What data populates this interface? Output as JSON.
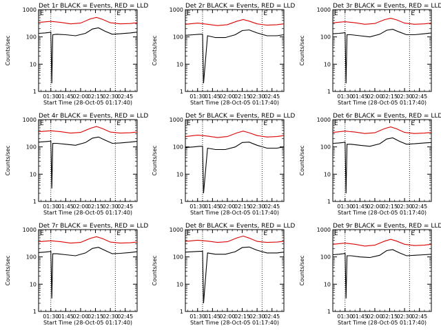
{
  "colors": {
    "events": "#000000",
    "lld": "#dd0000",
    "axis": "#000000"
  },
  "chart_data": [
    {
      "type": "line",
      "title": "Det 1r BLACK = Events, RED = LLD",
      "xlabel": "Start Time (28-Oct-05 01:17:40)",
      "ylabel": "Counts/sec",
      "yscale": "log",
      "ylim": [
        1,
        1000
      ],
      "yticks": [
        "1",
        "10",
        "100",
        "1000"
      ],
      "xlim": [
        "01:17:40",
        "02:57:00"
      ],
      "xticks": [
        "01:30",
        "01:45",
        "02:00",
        "02:15",
        "02:30",
        "02:45"
      ],
      "markers": [
        {
          "label": "E",
          "time": "01:17:40"
        },
        {
          "label": "E",
          "time": "02:35"
        }
      ],
      "vlines": [
        "01:30",
        "02:35"
      ],
      "series": [
        {
          "name": "Events",
          "color": "#000000",
          "x": [
            "01:18",
            "01:24",
            "01:28",
            "01:30",
            "01:31",
            "01:32",
            "01:36",
            "01:45",
            "01:55",
            "02:05",
            "02:12",
            "02:18",
            "02:25",
            "02:32",
            "02:40",
            "02:50",
            "02:57"
          ],
          "values": [
            135,
            140,
            145,
            150,
            2,
            120,
            125,
            120,
            110,
            135,
            195,
            215,
            160,
            125,
            130,
            140,
            150
          ]
        },
        {
          "name": "LLD",
          "color": "#dd0000",
          "x": [
            "01:18",
            "01:30",
            "01:40",
            "01:50",
            "02:00",
            "02:10",
            "02:16",
            "02:22",
            "02:30",
            "02:40",
            "02:50",
            "02:57"
          ],
          "values": [
            340,
            370,
            340,
            300,
            320,
            460,
            520,
            440,
            330,
            300,
            310,
            330
          ]
        }
      ]
    },
    {
      "type": "line",
      "title": "Det 2r BLACK = Events, RED = LLD",
      "xlabel": "Start Time (28-Oct-05 01:17:40)",
      "ylabel": "Counts/sec",
      "yscale": "log",
      "ylim": [
        1,
        1000
      ],
      "yticks": [
        "1",
        "10",
        "100",
        "1000"
      ],
      "xlim": [
        "01:17:40",
        "02:57:00"
      ],
      "xticks": [
        "01:30",
        "01:45",
        "02:00",
        "02:15",
        "02:30",
        "02:45"
      ],
      "markers": [
        {
          "label": "E",
          "time": "01:17:40"
        },
        {
          "label": "E",
          "time": "02:35"
        }
      ],
      "vlines": [
        "01:35",
        "02:35"
      ],
      "series": [
        {
          "name": "Events",
          "color": "#000000",
          "x": [
            "01:18",
            "01:26",
            "01:32",
            "01:35",
            "01:36",
            "01:40",
            "01:48",
            "01:58",
            "02:08",
            "02:15",
            "02:22",
            "02:30",
            "02:40",
            "02:50",
            "02:57"
          ],
          "values": [
            115,
            120,
            125,
            125,
            2,
            110,
            95,
            95,
            120,
            170,
            180,
            140,
            110,
            110,
            120
          ]
        },
        {
          "name": "LLD",
          "color": "#dd0000",
          "x": [
            "01:18",
            "01:30",
            "01:40",
            "01:50",
            "02:00",
            "02:10",
            "02:16",
            "02:22",
            "02:30",
            "02:40",
            "02:50",
            "02:57"
          ],
          "values": [
            290,
            320,
            290,
            260,
            280,
            380,
            430,
            380,
            300,
            270,
            280,
            300
          ]
        }
      ]
    },
    {
      "type": "line",
      "title": "Det 3r BLACK = Events, RED = LLD",
      "xlabel": "Start Time (28-Oct-05 01:17:40)",
      "ylabel": "Counts/sec",
      "yscale": "log",
      "ylim": [
        1,
        1000
      ],
      "yticks": [
        "1",
        "10",
        "100",
        "1000"
      ],
      "xlim": [
        "01:17:40",
        "02:57:00"
      ],
      "xticks": [
        "01:30",
        "01:45",
        "02:00",
        "02:15",
        "02:30",
        "02:45"
      ],
      "markers": [
        {
          "label": "E",
          "time": "01:17:40"
        },
        {
          "label": "E",
          "time": "02:35"
        }
      ],
      "vlines": [
        "01:30",
        "02:35"
      ],
      "series": [
        {
          "name": "Events",
          "color": "#000000",
          "x": [
            "01:18",
            "01:24",
            "01:28",
            "01:30",
            "01:31",
            "01:32",
            "01:36",
            "01:45",
            "01:55",
            "02:05",
            "02:12",
            "02:18",
            "02:25",
            "02:32",
            "02:40",
            "02:50",
            "02:57"
          ],
          "values": [
            130,
            135,
            140,
            145,
            2,
            120,
            120,
            110,
            100,
            125,
            175,
            190,
            150,
            120,
            120,
            130,
            140
          ]
        },
        {
          "name": "LLD",
          "color": "#dd0000",
          "x": [
            "01:18",
            "01:30",
            "01:40",
            "01:50",
            "02:00",
            "02:10",
            "02:16",
            "02:22",
            "02:30",
            "02:40",
            "02:50",
            "02:57"
          ],
          "values": [
            330,
            360,
            330,
            290,
            310,
            430,
            480,
            420,
            320,
            290,
            300,
            320
          ]
        }
      ]
    },
    {
      "type": "line",
      "title": "Det 4r BLACK = Events, RED = LLD",
      "xlabel": "Start Time (28-Oct-05 01:17:40)",
      "ylabel": "Counts/sec",
      "yscale": "log",
      "ylim": [
        1,
        1000
      ],
      "yticks": [
        "1",
        "10",
        "100",
        "1000"
      ],
      "xlim": [
        "01:17:40",
        "02:57:00"
      ],
      "xticks": [
        "01:30",
        "01:45",
        "02:00",
        "02:15",
        "02:30",
        "02:45"
      ],
      "markers": [
        {
          "label": "E",
          "time": "01:17:40"
        },
        {
          "label": "E",
          "time": "02:35"
        }
      ],
      "vlines": [
        "01:30",
        "02:35"
      ],
      "series": [
        {
          "name": "Events",
          "color": "#000000",
          "x": [
            "01:18",
            "01:24",
            "01:28",
            "01:30",
            "01:31",
            "01:32",
            "01:36",
            "01:45",
            "01:55",
            "02:05",
            "02:12",
            "02:18",
            "02:25",
            "02:32",
            "02:40",
            "02:50",
            "02:57"
          ],
          "values": [
            150,
            155,
            160,
            165,
            3,
            135,
            135,
            125,
            115,
            145,
            210,
            230,
            175,
            135,
            140,
            150,
            160
          ]
        },
        {
          "name": "LLD",
          "color": "#dd0000",
          "x": [
            "01:18",
            "01:30",
            "01:40",
            "01:50",
            "02:00",
            "02:10",
            "02:16",
            "02:22",
            "02:30",
            "02:40",
            "02:50",
            "02:57"
          ],
          "values": [
            360,
            390,
            360,
            320,
            340,
            480,
            560,
            470,
            350,
            320,
            330,
            350
          ]
        }
      ]
    },
    {
      "type": "line",
      "title": "Det 5r BLACK = Events, RED = LLD",
      "xlabel": "Start Time (28-Oct-05 01:17:40)",
      "ylabel": "Counts/sec",
      "yscale": "log",
      "ylim": [
        1,
        1000
      ],
      "yticks": [
        "1",
        "10",
        "100",
        "1000"
      ],
      "xlim": [
        "01:17:40",
        "02:57:00"
      ],
      "xticks": [
        "01:30",
        "01:45",
        "02:00",
        "02:15",
        "02:30",
        "02:45"
      ],
      "markers": [
        {
          "label": "E",
          "time": "01:17:40"
        },
        {
          "label": "E",
          "time": "02:35"
        }
      ],
      "vlines": [
        "01:35",
        "02:35"
      ],
      "series": [
        {
          "name": "Events",
          "color": "#000000",
          "x": [
            "01:18",
            "01:26",
            "01:32",
            "01:35",
            "01:36",
            "01:40",
            "01:48",
            "01:58",
            "02:08",
            "02:15",
            "02:22",
            "02:30",
            "02:40",
            "02:50",
            "02:57"
          ],
          "values": [
            95,
            100,
            105,
            105,
            2,
            90,
            80,
            80,
            100,
            145,
            150,
            115,
            90,
            90,
            100
          ]
        },
        {
          "name": "LLD",
          "color": "#dd0000",
          "x": [
            "01:18",
            "01:30",
            "01:40",
            "01:50",
            "02:00",
            "02:10",
            "02:16",
            "02:22",
            "02:30",
            "02:40",
            "02:50",
            "02:57"
          ],
          "values": [
            240,
            270,
            250,
            220,
            240,
            330,
            380,
            330,
            260,
            230,
            240,
            260
          ]
        }
      ]
    },
    {
      "type": "line",
      "title": "Det 6r BLACK = Events, RED = LLD",
      "xlabel": "Start Time (28-Oct-05 01:17:40)",
      "ylabel": "Counts/sec",
      "yscale": "log",
      "ylim": [
        1,
        1000
      ],
      "yticks": [
        "1",
        "10",
        "100",
        "1000"
      ],
      "xlim": [
        "01:17:40",
        "02:57:00"
      ],
      "xticks": [
        "01:30",
        "01:45",
        "02:00",
        "02:15",
        "02:30",
        "02:45"
      ],
      "markers": [
        {
          "label": "E",
          "time": "01:17:40"
        },
        {
          "label": "E",
          "time": "02:35"
        }
      ],
      "vlines": [
        "01:30",
        "02:35"
      ],
      "series": [
        {
          "name": "Events",
          "color": "#000000",
          "x": [
            "01:18",
            "01:24",
            "01:28",
            "01:30",
            "01:31",
            "01:32",
            "01:36",
            "01:45",
            "01:55",
            "02:05",
            "02:12",
            "02:18",
            "02:25",
            "02:32",
            "02:40",
            "02:50",
            "02:57"
          ],
          "values": [
            135,
            140,
            145,
            150,
            2,
            125,
            125,
            115,
            105,
            130,
            195,
            215,
            160,
            125,
            130,
            140,
            145
          ]
        },
        {
          "name": "LLD",
          "color": "#dd0000",
          "x": [
            "01:18",
            "01:30",
            "01:40",
            "01:50",
            "02:00",
            "02:10",
            "02:16",
            "02:22",
            "02:30",
            "02:40",
            "02:50",
            "02:57"
          ],
          "values": [
            340,
            380,
            350,
            310,
            330,
            470,
            540,
            460,
            340,
            310,
            320,
            340
          ]
        }
      ]
    },
    {
      "type": "line",
      "title": "Det 7r BLACK = Events, RED = LLD",
      "xlabel": "Start Time (28-Oct-05 01:17:40)",
      "ylabel": "Counts/sec",
      "yscale": "log",
      "ylim": [
        1,
        1000
      ],
      "yticks": [
        "1",
        "10",
        "100",
        "1000"
      ],
      "xlim": [
        "01:17:40",
        "02:57:00"
      ],
      "xticks": [
        "01:30",
        "01:45",
        "02:00",
        "02:15",
        "02:30",
        "02:45"
      ],
      "markers": [
        {
          "label": "E",
          "time": "01:17:40"
        },
        {
          "label": "E",
          "time": "02:35"
        }
      ],
      "vlines": [
        "01:30",
        "02:35"
      ],
      "series": [
        {
          "name": "Events",
          "color": "#000000",
          "x": [
            "01:18",
            "01:24",
            "01:28",
            "01:30",
            "01:31",
            "01:32",
            "01:36",
            "01:45",
            "01:55",
            "02:05",
            "02:12",
            "02:18",
            "02:25",
            "02:32",
            "02:40",
            "02:50",
            "02:57"
          ],
          "values": [
            145,
            150,
            155,
            160,
            3,
            130,
            130,
            120,
            110,
            140,
            205,
            225,
            170,
            130,
            135,
            145,
            155
          ]
        },
        {
          "name": "LLD",
          "color": "#dd0000",
          "x": [
            "01:18",
            "01:30",
            "01:40",
            "01:50",
            "02:00",
            "02:10",
            "02:16",
            "02:22",
            "02:30",
            "02:40",
            "02:50",
            "02:57"
          ],
          "values": [
            360,
            390,
            360,
            320,
            340,
            480,
            550,
            470,
            350,
            320,
            330,
            350
          ]
        }
      ]
    },
    {
      "type": "line",
      "title": "Det 8r BLACK = Events, RED = LLD",
      "xlabel": "Start Time (28-Oct-05 01:17:40)",
      "ylabel": "Counts/sec",
      "yscale": "log",
      "ylim": [
        1,
        1000
      ],
      "yticks": [
        "1",
        "10",
        "100",
        "1000"
      ],
      "xlim": [
        "01:17:40",
        "02:57:00"
      ],
      "xticks": [
        "01:30",
        "01:45",
        "02:00",
        "02:15",
        "02:30",
        "02:45"
      ],
      "markers": [
        {
          "label": "E",
          "time": "01:17:40"
        },
        {
          "label": "E",
          "time": "02:35"
        }
      ],
      "vlines": [
        "01:35",
        "02:35"
      ],
      "series": [
        {
          "name": "Events",
          "color": "#000000",
          "x": [
            "01:18",
            "01:26",
            "01:32",
            "01:35",
            "01:36",
            "01:40",
            "01:48",
            "01:58",
            "02:08",
            "02:15",
            "02:22",
            "02:30",
            "02:40",
            "02:50",
            "02:57"
          ],
          "values": [
            150,
            155,
            160,
            160,
            2,
            140,
            125,
            125,
            155,
            220,
            230,
            175,
            140,
            140,
            150
          ]
        },
        {
          "name": "LLD",
          "color": "#dd0000",
          "x": [
            "01:18",
            "01:30",
            "01:40",
            "01:50",
            "02:00",
            "02:10",
            "02:16",
            "02:22",
            "02:30",
            "02:40",
            "02:50",
            "02:57"
          ],
          "values": [
            370,
            410,
            380,
            340,
            360,
            500,
            580,
            490,
            370,
            340,
            350,
            370
          ]
        }
      ]
    },
    {
      "type": "line",
      "title": "Det 9r BLACK = Events, RED = LLD",
      "xlabel": "Start Time (28-Oct-05 01:17:40)",
      "ylabel": "Counts/sec",
      "yscale": "log",
      "ylim": [
        1,
        1000
      ],
      "yticks": [
        "1",
        "10",
        "100",
        "1000"
      ],
      "xlim": [
        "01:17:40",
        "02:57:00"
      ],
      "xticks": [
        "01:30",
        "01:45",
        "02:00",
        "02:15",
        "02:30",
        "02:45"
      ],
      "markers": [
        {
          "label": "E",
          "time": "01:17:40"
        },
        {
          "label": "E",
          "time": "02:35"
        }
      ],
      "vlines": [
        "01:30",
        "02:35"
      ],
      "series": [
        {
          "name": "Events",
          "color": "#000000",
          "x": [
            "01:18",
            "01:24",
            "01:28",
            "01:30",
            "01:31",
            "01:32",
            "01:36",
            "01:45",
            "01:55",
            "02:05",
            "02:12",
            "02:18",
            "02:25",
            "02:32",
            "02:40",
            "02:50",
            "02:57"
          ],
          "values": [
            120,
            125,
            130,
            135,
            3,
            110,
            110,
            100,
            95,
            115,
            170,
            185,
            140,
            110,
            115,
            120,
            125
          ]
        },
        {
          "name": "LLD",
          "color": "#dd0000",
          "x": [
            "01:18",
            "01:30",
            "01:40",
            "01:50",
            "02:00",
            "02:10",
            "02:16",
            "02:22",
            "02:30",
            "02:40",
            "02:50",
            "02:57"
          ],
          "values": [
            290,
            320,
            290,
            250,
            270,
            380,
            440,
            380,
            290,
            260,
            270,
            290
          ]
        }
      ]
    }
  ]
}
